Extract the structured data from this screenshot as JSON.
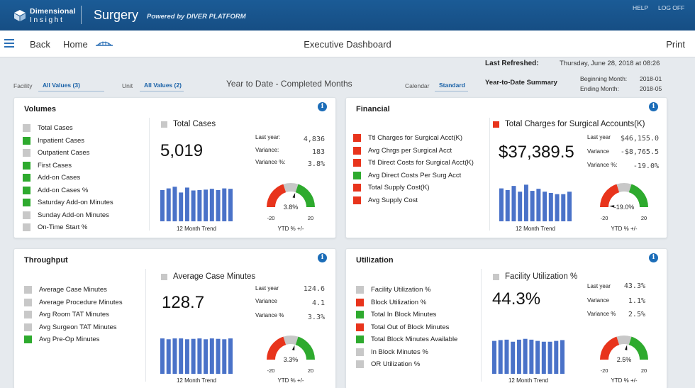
{
  "header": {
    "logo_line1": "Dimensional",
    "logo_line2": "Insight",
    "app_title": "Surgery",
    "powered_by": "Powered by DIVER PLATFORM",
    "help": "HELP",
    "logoff": "LOG OFF"
  },
  "nav": {
    "back": "Back",
    "home": "Home",
    "title": "Executive Dashboard",
    "print": "Print"
  },
  "info_bar": {
    "last_refreshed_label": "Last Refreshed:",
    "last_refreshed_value": "Thursday, June 28, 2018 at 08:26",
    "facility_label": "Facility",
    "facility_value": "All Values (3)",
    "unit_label": "Unit",
    "unit_value": "All Values (2)",
    "period_title": "Year to Date - Completed Months",
    "calendar_label": "Calendar",
    "calendar_value": "Standard",
    "summary_label": "Year-to-Date Summary",
    "beginning_label": "Beginning Month:",
    "beginning_value": "2018-01",
    "ending_label": "Ending Month:",
    "ending_value": "2018-05"
  },
  "colors": {
    "green": "#2eaa2e",
    "red": "#e8341c",
    "gray": "#c8c8c8",
    "bar": "#4a72c8",
    "brand": "#1b5b96"
  },
  "cards": {
    "volumes": {
      "title": "Volumes",
      "metrics": [
        {
          "label": "Total Cases",
          "status": "gray"
        },
        {
          "label": "Inpatient Cases",
          "status": "green"
        },
        {
          "label": "Outpatient Cases",
          "status": "gray"
        },
        {
          "label": "First Cases",
          "status": "green"
        },
        {
          "label": "Add-on Cases",
          "status": "green"
        },
        {
          "label": "Add-on Cases %",
          "status": "green"
        },
        {
          "label": "Saturday Add-on Minutes",
          "status": "green"
        },
        {
          "label": "Sunday Add-on Minutes",
          "status": "gray"
        },
        {
          "label": "On-Time Start %",
          "status": "gray"
        }
      ],
      "kpi_title": "Total Cases",
      "kpi_status": "gray",
      "kpi_value": "5,019",
      "last_year_label": "Last year:",
      "last_year_value": "4,836",
      "variance_label": "Variance:",
      "variance_value": "183",
      "variance_pct_label": "Variance %:",
      "variance_pct_value": "3.8%",
      "trend_label": "12 Month Trend",
      "trend": [
        0.76,
        0.8,
        0.84,
        0.7,
        0.82,
        0.75,
        0.76,
        0.77,
        0.79,
        0.76,
        0.8,
        0.79
      ],
      "gauge_value": 3.8,
      "gauge_text": "3.8%",
      "gauge_min": "-20",
      "gauge_max": "20",
      "gauge_label": "YTD % +/-"
    },
    "financial": {
      "title": "Financial",
      "metrics": [
        {
          "label": "Ttl Charges for Surgical Acct(K)",
          "status": "red"
        },
        {
          "label": "Avg Chrgs per Surgical Acct",
          "status": "red"
        },
        {
          "label": "Ttl Direct Costs for Surgical Acct(K)",
          "status": "red"
        },
        {
          "label": "Avg Direct Costs Per Surg Acct",
          "status": "green"
        },
        {
          "label": "Total Supply Cost(K)",
          "status": "red"
        },
        {
          "label": "Avg Supply Cost",
          "status": "red"
        }
      ],
      "kpi_title": "Total Charges for Surgical Accounts(K)",
      "kpi_status": "red",
      "kpi_value": "$37,389.5",
      "last_year_label": "Last year",
      "last_year_value": "$46,155.0",
      "variance_label": "Variance",
      "variance_value": "-$8,765.5",
      "variance_pct_label": "Variance %:",
      "variance_pct_value": "-19.0%",
      "trend_label": "12 Month Trend",
      "trend": [
        0.8,
        0.76,
        0.86,
        0.72,
        0.89,
        0.74,
        0.79,
        0.72,
        0.69,
        0.66,
        0.66,
        0.72
      ],
      "gauge_value": -19.0,
      "gauge_text": "-19.0%",
      "gauge_min": "-20",
      "gauge_max": "20",
      "gauge_label": "YTD % +/-"
    },
    "throughput": {
      "title": "Throughput",
      "metrics": [
        {
          "label": "Average Case Minutes",
          "status": "gray"
        },
        {
          "label": "Average Procedure Minutes",
          "status": "gray"
        },
        {
          "label": "Avg Room TAT Minutes",
          "status": "gray"
        },
        {
          "label": "Avg Surgeon TAT Minutes",
          "status": "gray"
        },
        {
          "label": "Avg Pre-Op Minutes",
          "status": "green"
        }
      ],
      "kpi_title": "Average Case Minutes",
      "kpi_status": "gray",
      "kpi_value": "128.7",
      "last_year_label": "Last year",
      "last_year_value": "124.6",
      "variance_label": "Variance",
      "variance_value": "4.1",
      "variance_pct_label": "Variance %",
      "variance_pct_value": "3.3%",
      "trend_label": "12 Month Trend",
      "trend": [
        0.86,
        0.84,
        0.86,
        0.86,
        0.84,
        0.85,
        0.86,
        0.84,
        0.86,
        0.85,
        0.84,
        0.86
      ],
      "gauge_value": 3.3,
      "gauge_text": "3.3%",
      "gauge_min": "-20",
      "gauge_max": "20",
      "gauge_label": "YTD % +/-"
    },
    "utilization": {
      "title": "Utilization",
      "metrics": [
        {
          "label": "Facility Utilization %",
          "status": "gray"
        },
        {
          "label": "Block Utilization %",
          "status": "red"
        },
        {
          "label": "Total In Block Minutes",
          "status": "green"
        },
        {
          "label": "Total Out of Block Minutes",
          "status": "red"
        },
        {
          "label": "Total Block Minutes Available",
          "status": "green"
        },
        {
          "label": "In Block Minutes %",
          "status": "gray"
        },
        {
          "label": "OR Utilization %",
          "status": "gray"
        }
      ],
      "kpi_title": "Facility Utilization %",
      "kpi_status": "gray",
      "kpi_value": "44.3%",
      "last_year_label": "Last year",
      "last_year_value": "43.3%",
      "variance_label": "Variance",
      "variance_value": "1.1%",
      "variance_pct_label": "Variance %",
      "variance_pct_value": "2.5%",
      "trend_label": "12 Month Trend",
      "trend": [
        0.8,
        0.82,
        0.83,
        0.78,
        0.83,
        0.85,
        0.83,
        0.8,
        0.78,
        0.78,
        0.8,
        0.82
      ],
      "gauge_value": 2.5,
      "gauge_text": "2.5%",
      "gauge_min": "-20",
      "gauge_max": "20",
      "gauge_label": "YTD % +/-"
    }
  }
}
